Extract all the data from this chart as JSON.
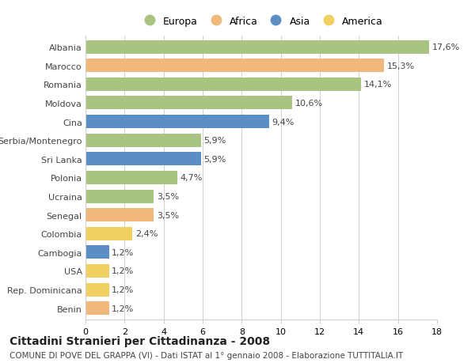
{
  "categories": [
    "Albania",
    "Marocco",
    "Romania",
    "Moldova",
    "Cina",
    "Serbia/Montenegro",
    "Sri Lanka",
    "Polonia",
    "Ucraina",
    "Senegal",
    "Colombia",
    "Cambogia",
    "USA",
    "Rep. Dominicana",
    "Benin"
  ],
  "values": [
    17.6,
    15.3,
    14.1,
    10.6,
    9.4,
    5.9,
    5.9,
    4.7,
    3.5,
    3.5,
    2.4,
    1.2,
    1.2,
    1.2,
    1.2
  ],
  "continents": [
    "Europa",
    "Africa",
    "Europa",
    "Europa",
    "Asia",
    "Europa",
    "Asia",
    "Europa",
    "Europa",
    "Africa",
    "America",
    "Asia",
    "America",
    "America",
    "Africa"
  ],
  "continent_colors": {
    "Europa": "#a8c480",
    "Africa": "#f0b87a",
    "Asia": "#5b8fc4",
    "America": "#f0d060"
  },
  "legend_order": [
    "Europa",
    "Africa",
    "Asia",
    "America"
  ],
  "title": "Cittadini Stranieri per Cittadinanza - 2008",
  "subtitle": "COMUNE DI POVE DEL GRAPPA (VI) - Dati ISTAT al 1° gennaio 2008 - Elaborazione TUTTITALIA.IT",
  "xlim": [
    0,
    18
  ],
  "xticks": [
    0,
    2,
    4,
    6,
    8,
    10,
    12,
    14,
    16,
    18
  ],
  "bar_height": 0.72,
  "background_color": "#ffffff",
  "grid_color": "#d0d0d0",
  "text_color": "#444444",
  "title_fontsize": 10,
  "subtitle_fontsize": 7.5,
  "tick_fontsize": 8,
  "label_fontsize": 8,
  "legend_fontsize": 9
}
